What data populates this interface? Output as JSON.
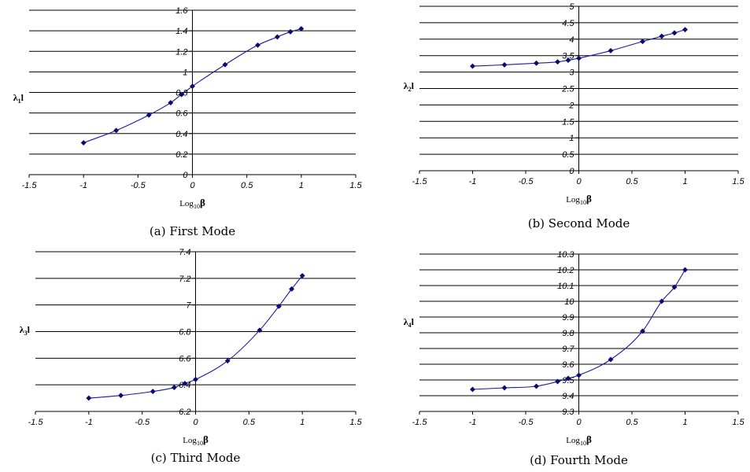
{
  "chart_data": [
    {
      "type": "line",
      "caption": "(a) First Mode",
      "xlabel": "Log10β",
      "ylabel": "λ1l",
      "xlim": [
        -1.5,
        1.5
      ],
      "ylim": [
        0,
        1.6
      ],
      "x_ticks": [
        "-1.5",
        "-1",
        "-0.5",
        "0",
        "0.5",
        "1",
        "1.5"
      ],
      "y_ticks": [
        "0",
        "0.2",
        "0.4",
        "0.6",
        "0.8",
        "1",
        "1.2",
        "1.4",
        "1.6"
      ],
      "grid": "horizontal",
      "legend": "none",
      "series": [
        {
          "x": [
            -1,
            -0.7,
            -0.4,
            -0.2,
            -0.1,
            0,
            0.3,
            0.6,
            0.78,
            0.9,
            1
          ],
          "y": [
            0.31,
            0.43,
            0.58,
            0.7,
            0.78,
            0.86,
            1.07,
            1.26,
            1.34,
            1.39,
            1.42
          ]
        }
      ]
    },
    {
      "type": "line",
      "caption": "(b) Second Mode",
      "xlabel": "Log10β",
      "ylabel": "λ2l",
      "xlim": [
        -1.5,
        1.5
      ],
      "ylim": [
        0,
        5
      ],
      "x_ticks": [
        "-1.5",
        "-1",
        "-0.5",
        "0",
        "0.5",
        "1",
        "1.5"
      ],
      "y_ticks": [
        "0",
        "0.5",
        "1",
        "1.5",
        "2",
        "2.5",
        "3",
        "3.5",
        "4",
        "4.5",
        "5"
      ],
      "grid": "horizontal",
      "legend": "none",
      "series": [
        {
          "x": [
            -1,
            -0.7,
            -0.4,
            -0.2,
            -0.1,
            0,
            0.3,
            0.6,
            0.78,
            0.9,
            1
          ],
          "y": [
            3.18,
            3.22,
            3.27,
            3.31,
            3.36,
            3.42,
            3.65,
            3.93,
            4.09,
            4.19,
            4.29
          ]
        }
      ]
    },
    {
      "type": "line",
      "caption": "(c) Third Mode",
      "xlabel": "Log10β",
      "ylabel": "λ3l",
      "xlim": [
        -1.5,
        1.5
      ],
      "ylim": [
        6.2,
        7.4
      ],
      "x_ticks": [
        "-1.5",
        "-1",
        "-0.5",
        "0",
        "0.5",
        "1",
        "1.5"
      ],
      "y_ticks": [
        "6.2",
        "6.4",
        "6.6",
        "6.8",
        "7",
        "7.2",
        "7.4"
      ],
      "grid": "horizontal",
      "legend": "none",
      "series": [
        {
          "x": [
            -1,
            -0.7,
            -0.4,
            -0.2,
            -0.1,
            0,
            0.3,
            0.6,
            0.78,
            0.9,
            1
          ],
          "y": [
            6.3,
            6.32,
            6.35,
            6.38,
            6.41,
            6.44,
            6.58,
            6.81,
            6.99,
            7.12,
            7.22
          ]
        }
      ]
    },
    {
      "type": "line",
      "caption": "(d) Fourth Mode",
      "xlabel": "Log10β",
      "ylabel": "λ4l",
      "xlim": [
        -1.5,
        1.5
      ],
      "ylim": [
        9.3,
        10.3
      ],
      "x_ticks": [
        "-1.5",
        "-1",
        "-0.5",
        "0",
        "0.5",
        "1",
        "1.5"
      ],
      "y_ticks": [
        "9.3",
        "9.4",
        "9.5",
        "9.6",
        "9.7",
        "9.8",
        "9.9",
        "10",
        "10.1",
        "10.2",
        "10.3"
      ],
      "grid": "horizontal",
      "legend": "none",
      "series": [
        {
          "x": [
            -1,
            -0.7,
            -0.4,
            -0.2,
            -0.1,
            0,
            0.3,
            0.6,
            0.78,
            0.9,
            1
          ],
          "y": [
            9.44,
            9.45,
            9.46,
            9.49,
            9.51,
            9.53,
            9.63,
            9.81,
            10.0,
            10.09,
            10.2
          ]
        }
      ]
    }
  ]
}
